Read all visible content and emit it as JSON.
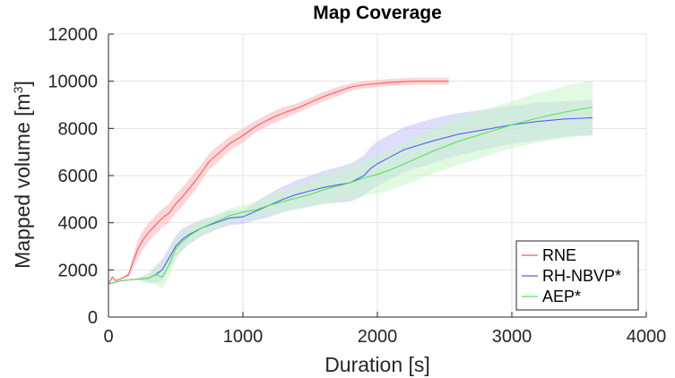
{
  "chart_data": {
    "type": "line",
    "title": "Map Coverage",
    "xlabel": "Duration [s]",
    "ylabel": "Mapped volume [m",
    "ylabel_sup": "3",
    "ylabel_close": "]",
    "xlim": [
      0,
      4000
    ],
    "ylim": [
      0,
      12000
    ],
    "xticks": [
      0,
      1000,
      2000,
      3000,
      4000
    ],
    "yticks": [
      0,
      2000,
      4000,
      6000,
      8000,
      10000,
      12000
    ],
    "grid": true,
    "legend_position": "bottom-right",
    "series": [
      {
        "name": "RNE",
        "color": "#ff5a5a",
        "band_color": "#f7b4b8",
        "x": [
          0,
          30,
          50,
          80,
          120,
          150,
          180,
          220,
          260,
          300,
          350,
          400,
          450,
          500,
          550,
          600,
          650,
          700,
          750,
          800,
          900,
          1000,
          1100,
          1200,
          1300,
          1400,
          1500,
          1600,
          1700,
          1800,
          1900,
          2000,
          2100,
          2200,
          2300,
          2400,
          2530
        ],
        "values": [
          1400,
          1700,
          1550,
          1600,
          1700,
          1800,
          2300,
          2900,
          3300,
          3600,
          3900,
          4200,
          4400,
          4800,
          5100,
          5450,
          5800,
          6200,
          6600,
          6850,
          7350,
          7700,
          8100,
          8400,
          8650,
          8850,
          9100,
          9350,
          9550,
          9750,
          9850,
          9900,
          9950,
          9980,
          10000,
          10000,
          10000
        ],
        "band": [
          0,
          0,
          0,
          0,
          50,
          100,
          250,
          400,
          400,
          400,
          400,
          400,
          400,
          400,
          400,
          400,
          400,
          350,
          350,
          350,
          300,
          300,
          250,
          250,
          250,
          200,
          200,
          200,
          200,
          150,
          150,
          150,
          150,
          150,
          150,
          150,
          150
        ]
      },
      {
        "name": "RH-NBVP*",
        "color": "#5a5aff",
        "band_color": "#c3c3f5",
        "x": [
          0,
          100,
          200,
          300,
          350,
          400,
          450,
          500,
          550,
          600,
          700,
          800,
          900,
          1000,
          1100,
          1200,
          1300,
          1400,
          1500,
          1600,
          1700,
          1800,
          1900,
          1950,
          2000,
          2100,
          2200,
          2400,
          2600,
          2800,
          3000,
          3200,
          3400,
          3600
        ],
        "values": [
          1400,
          1550,
          1600,
          1650,
          1800,
          2000,
          2500,
          3000,
          3300,
          3500,
          3800,
          4000,
          4200,
          4250,
          4500,
          4750,
          5000,
          5200,
          5350,
          5500,
          5600,
          5700,
          6000,
          6300,
          6500,
          6800,
          7100,
          7450,
          7750,
          7950,
          8150,
          8300,
          8400,
          8450
        ],
        "band": [
          0,
          0,
          0,
          200,
          350,
          450,
          450,
          450,
          450,
          400,
          350,
          300,
          300,
          300,
          400,
          500,
          550,
          600,
          650,
          700,
          750,
          800,
          850,
          900,
          950,
          950,
          950,
          950,
          900,
          850,
          800,
          800,
          750,
          750
        ]
      },
      {
        "name": "AEP*",
        "color": "#50e650",
        "band_color": "#c8f5c8",
        "x": [
          0,
          100,
          200,
          300,
          350,
          400,
          450,
          500,
          550,
          600,
          700,
          800,
          900,
          1000,
          1100,
          1200,
          1300,
          1400,
          1500,
          1600,
          1700,
          1800,
          1900,
          2000,
          2100,
          2200,
          2400,
          2600,
          2800,
          3000,
          3200,
          3400,
          3600
        ],
        "values": [
          1400,
          1550,
          1600,
          1650,
          1800,
          1700,
          2200,
          2900,
          3200,
          3450,
          3800,
          4050,
          4300,
          4450,
          4550,
          4750,
          4900,
          5050,
          5200,
          5400,
          5550,
          5700,
          5900,
          6050,
          6250,
          6500,
          7000,
          7450,
          7800,
          8150,
          8450,
          8700,
          8900
        ],
        "band": [
          0,
          0,
          0,
          200,
          400,
          500,
          500,
          450,
          400,
          350,
          300,
          300,
          300,
          300,
          350,
          400,
          450,
          500,
          550,
          600,
          650,
          700,
          750,
          800,
          850,
          900,
          950,
          1000,
          1000,
          1000,
          1050,
          1100,
          1150
        ]
      }
    ]
  }
}
